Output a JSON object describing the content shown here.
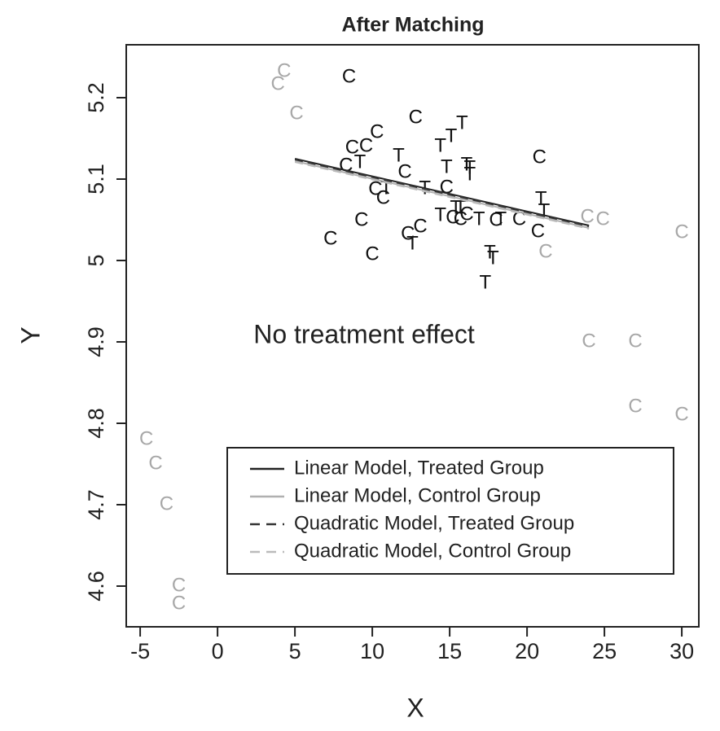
{
  "chart_data": {
    "type": "scatter",
    "title": "After Matching",
    "x_label": "X",
    "y_label": "Y",
    "annotation": "No treatment effect",
    "annotation_color": "#e00000",
    "xlim": [
      -5.9,
      31.1
    ],
    "ylim": [
      4.55,
      5.265
    ],
    "xticks": [
      -5,
      0,
      5,
      10,
      15,
      20,
      25,
      30
    ],
    "yticks": [
      4.6,
      4.7,
      4.8,
      4.9,
      5.0,
      5.1,
      5.2
    ],
    "legend": "bottom-right",
    "series": [
      {
        "marker": "C",
        "color": "#a8a8a8",
        "x": [
          4.3,
          3.9,
          5.1,
          -4.6,
          -4.0,
          -3.3,
          -2.5,
          -2.5,
          23.9,
          24.9,
          30,
          21.2,
          24,
          27,
          27,
          30
        ],
        "values": [
          5.232,
          5.216,
          5.18,
          4.78,
          4.75,
          4.7,
          4.6,
          4.578,
          5.053,
          5.05,
          5.034,
          5.01,
          4.9,
          4.9,
          4.82,
          4.81
        ]
      },
      {
        "marker": "C",
        "color": "#111111",
        "x": [
          8.5,
          12.8,
          10.3,
          9.6,
          8.7,
          8.3,
          12.1,
          20.8,
          10.2,
          14.8,
          10.7,
          9.3,
          13.1,
          12.3,
          7.3,
          10,
          15.2,
          15.7,
          16.1,
          19.5,
          20.7,
          18
        ],
        "values": [
          5.225,
          5.175,
          5.157,
          5.14,
          5.138,
          5.116,
          5.108,
          5.126,
          5.087,
          5.089,
          5.076,
          5.049,
          5.041,
          5.032,
          5.026,
          5.007,
          5.052,
          5.05,
          5.056,
          5.05,
          5.035,
          5.049
        ]
      },
      {
        "marker": "T",
        "color": "#111111",
        "x": [
          15.8,
          15.1,
          14.4,
          11.7,
          14.8,
          16.1,
          16.3,
          16.3,
          9.2,
          10.9,
          13.4,
          15.4,
          15.7,
          14.4,
          16.9,
          18.3,
          20.9,
          21.1,
          12.6,
          17.6,
          17.8,
          17.3
        ],
        "values": [
          5.168,
          5.152,
          5.14,
          5.128,
          5.114,
          5.117,
          5.113,
          5.105,
          5.12,
          5.088,
          5.088,
          5.064,
          5.064,
          5.055,
          5.05,
          5.05,
          5.075,
          5.06,
          5.02,
          5.009,
          5.002,
          4.972
        ]
      },
      {
        "name": "Linear Model, Treated Group",
        "color": "#222222",
        "dash": false,
        "x": [
          5,
          24
        ],
        "values": [
          5.125,
          5.043
        ]
      },
      {
        "name": "Linear Model, Control Group",
        "color": "#b0b0b0",
        "dash": false,
        "x": [
          5,
          24
        ],
        "values": [
          5.122,
          5.04
        ]
      },
      {
        "name": "Quadratic Model, Treated Group",
        "color": "#333333",
        "dash": true,
        "x": [
          5,
          14.5,
          24
        ],
        "values": [
          5.124,
          5.083,
          5.042
        ]
      },
      {
        "name": "Quadratic Model, Control Group",
        "color": "#bbbbbb",
        "dash": true,
        "x": [
          5,
          14.5,
          24
        ],
        "values": [
          5.121,
          5.08,
          5.039
        ]
      }
    ]
  }
}
